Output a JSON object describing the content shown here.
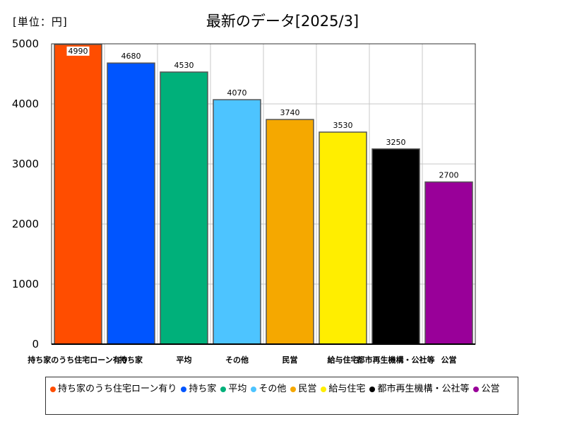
{
  "chart_data": {
    "type": "bar",
    "title": "最新のデータ[2025/3]",
    "unit_label": "[単位：円]",
    "categories": [
      "持ち家のうち住宅ローン有り",
      "持ち家",
      "平均",
      "その他",
      "民営",
      "給与住宅",
      "都市再生機構・公社等",
      "公営"
    ],
    "values": [
      4990,
      4680,
      4530,
      4070,
      3740,
      3530,
      3250,
      2700
    ],
    "colors": [
      "#ff4d00",
      "#0055ff",
      "#00b07a",
      "#4dc4ff",
      "#f5a800",
      "#ffee00",
      "#000000",
      "#990099"
    ],
    "y_ticks": [
      "0",
      "1000",
      "2000",
      "3000",
      "4000",
      "5000"
    ],
    "ylim": [
      0,
      5000
    ],
    "grid": true,
    "legend_position": "bottom"
  }
}
